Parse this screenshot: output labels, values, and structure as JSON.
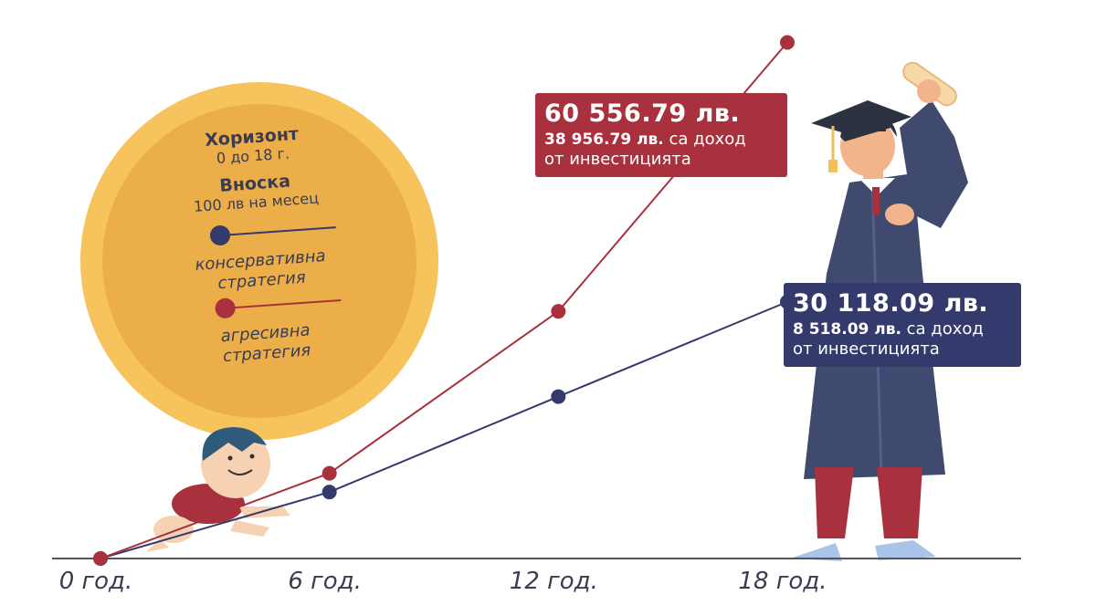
{
  "colors": {
    "conservative": "#343a6b",
    "aggressive": "#a8313d",
    "axis": "#555555",
    "coin_outer": "#f6c35c",
    "coin_inner": "#ecae48"
  },
  "info": {
    "horizon_title": "Хоризонт",
    "horizon_value": "0 до 18 г.",
    "deposit_title": "Вноска",
    "deposit_value": "100 лв на месец",
    "conservative_label_1": "консервативна",
    "conservative_label_2": "стратегия",
    "aggressive_label_1": "агресивна",
    "aggressive_label_2": "стратегия"
  },
  "callouts": {
    "aggressive": {
      "total": "60 556.79 лв.",
      "income_amount": "38 956.79 лв.",
      "income_text_1": " са доход",
      "income_text_2": "от инвестицията"
    },
    "conservative": {
      "total": "30 118.09 лв.",
      "income_amount": "8 518.09 лв.",
      "income_text_1": " са доход",
      "income_text_2": "от инвестицията"
    }
  },
  "illustrations": {
    "baby": "baby-crawling-illustration",
    "graduate": "graduate-illustration",
    "coin": "coin-icon"
  },
  "chart_data": {
    "type": "line",
    "x": [
      0,
      6,
      12,
      18
    ],
    "x_tick_labels": [
      "0 год.",
      "6 год.",
      "12 год.",
      "18 год."
    ],
    "series": [
      {
        "name": "консервативна стратегия",
        "values": [
          0,
          7800,
          19000,
          30118.09
        ]
      },
      {
        "name": "агресивна стратегия",
        "values": [
          0,
          10000,
          29000,
          60556.79
        ]
      }
    ],
    "xlim": [
      0,
      18
    ],
    "ylim": [
      0,
      65000
    ],
    "grid": false,
    "legend": "top-left"
  }
}
